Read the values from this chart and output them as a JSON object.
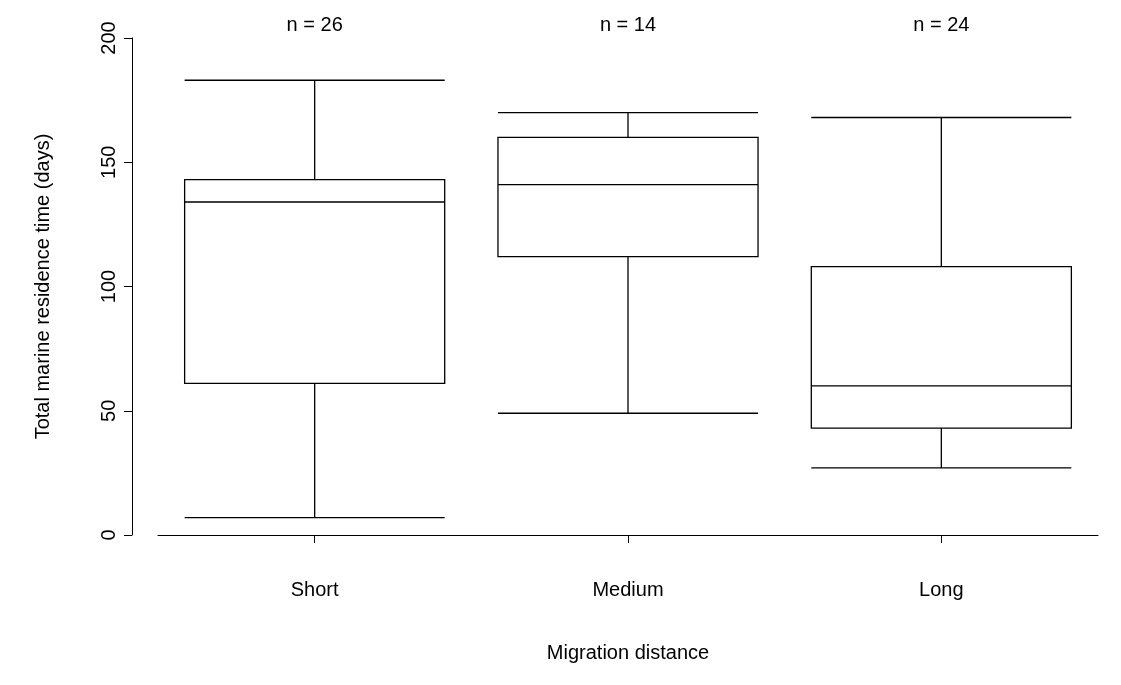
{
  "chart_data": {
    "type": "box",
    "xlabel": "Migration distance",
    "ylabel": "Total marine residence time (days)",
    "categories": [
      "Short",
      "Medium",
      "Long"
    ],
    "boxes": [
      {
        "low": 7,
        "q1": 61,
        "median": 134,
        "q3": 143,
        "high": 183
      },
      {
        "low": 49,
        "q1": 112,
        "median": 141,
        "q3": 160,
        "high": 170
      },
      {
        "low": 27,
        "q1": 43,
        "median": 60,
        "q3": 108,
        "high": 168
      }
    ],
    "color": "#000000",
    "annotations": [
      "n = 26",
      "n = 14",
      "n = 24"
    ],
    "ylim": [
      0,
      200
    ],
    "yticks": [
      0,
      50,
      100,
      150,
      200
    ],
    "grid": false
  }
}
